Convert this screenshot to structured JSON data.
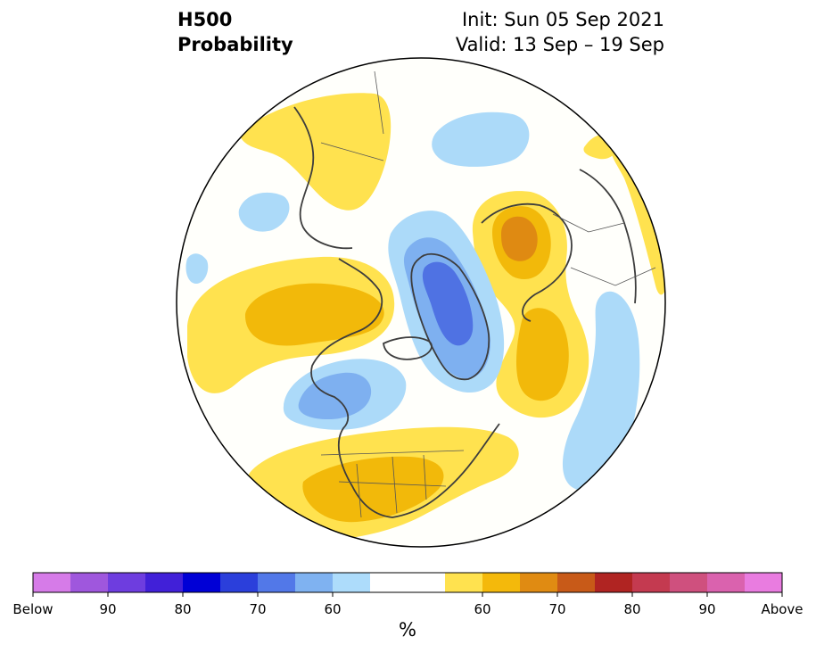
{
  "header": {
    "variable": "H500",
    "product": "Probability",
    "init": "Init: Sun 05 Sep 2021",
    "valid": "Valid: 13 Sep – 19 Sep"
  },
  "colorbar": {
    "unit": "%",
    "colors": [
      "#d67be8",
      "#9f57dd",
      "#6e3ddf",
      "#4120d8",
      "#0000d6",
      "#2b3fdb",
      "#5278e8",
      "#7fb2f1",
      "#addcfb",
      "#ffffff",
      "#ffffff",
      "#ffe24f",
      "#f4b90b",
      "#e08b12",
      "#c85a18",
      "#b02422",
      "#c43a50",
      "#cf507e",
      "#da62ae",
      "#e97ce0"
    ],
    "tick_labels": [
      "Below",
      "90",
      "80",
      "70",
      "60",
      "60",
      "70",
      "80",
      "90",
      "Above"
    ]
  },
  "legend_colors": {
    "strong_below": "#4f72e3",
    "below": "#7eb0f0",
    "weak_below": "#acdaf9",
    "neutral": "#fffffb",
    "weak_above": "#ffe24f",
    "above": "#f2b90a",
    "strong_above": "#df8a12"
  }
}
